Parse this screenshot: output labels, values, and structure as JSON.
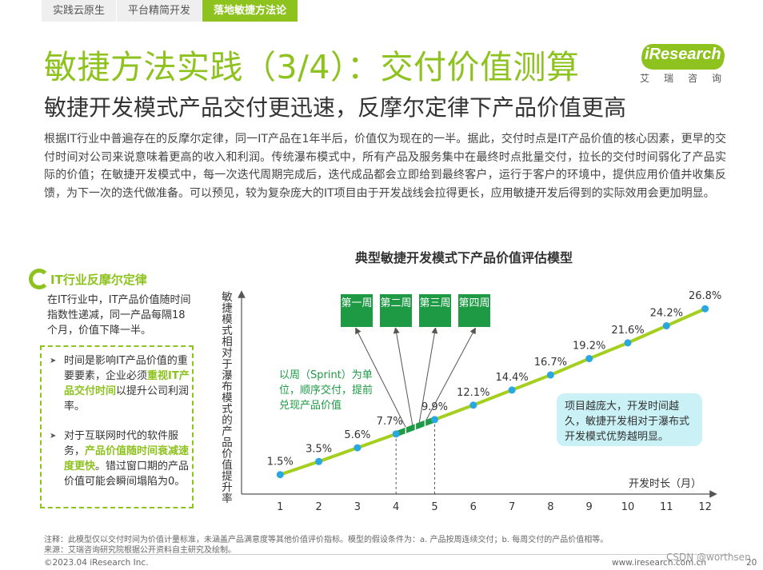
{
  "tabs": [
    {
      "label": "实践云原生",
      "active": false
    },
    {
      "label": "平台精简开发",
      "active": false
    },
    {
      "label": "落地敏捷方法论",
      "active": true
    }
  ],
  "title": "敏捷方法实践（3/4）：交付价值测算",
  "logo": {
    "text": "iResearch",
    "sub": "艾瑞咨询"
  },
  "subtitle": "敏捷开发模式产品交付更迅速，反摩尔定律下产品价值更高",
  "intro": "根据IT行业中普遍存在的反摩尔定律，同一IT产品在1年半后，价值仅为现在的一半。据此，交付时点是IT产品价值的核心因素，更早的交付时间对公司来说意味着更高的收入和利润。传统瀑布模式中，所有产品及服务集中在最终时点批量交付，拉长的交付时间弱化了产品实际的价值；在敏捷开发模式中，每一次迭代周期完成后，迭代成品都会立即给到最终客户，运行于客户的环境中，提供应用价值并收集反馈，为下一次的迭代做准备。可以预见，较为复杂庞大的IT项目由于开发战线会拉得更长，应用敏捷开发后得到的实际效用会更加明显。",
  "sidebar": {
    "title": "IT行业反摩尔定律",
    "desc": "在IT行业中，IT产品价值随时间指数性递减，同一产品每隔18个月，价值下降一半。",
    "note1": {
      "pre": "时间是影响IT产品价值的重要要素，企业必须",
      "hl": "重视IT产品交付时间",
      "post": "以提升公司利润率。"
    },
    "note2": {
      "pre": "对于互联网时代的软件服务，",
      "hl": "产品价值随时间衰减速度更快",
      "post": "。错过窗口期的产品价值可能会瞬间塌陷为0。"
    }
  },
  "chart_data": {
    "type": "line",
    "title": "典型敏捷开发模式下产品价值评估模型",
    "xlabel": "开发时长（月）",
    "ylabel": "敏捷模式相对于瀑布模式的产品价值提升率",
    "x": [
      1,
      2,
      3,
      4,
      5,
      6,
      7,
      8,
      9,
      10,
      11,
      12
    ],
    "y": [
      1.5,
      3.5,
      5.6,
      7.7,
      9.9,
      12.1,
      14.4,
      16.7,
      19.2,
      21.6,
      24.2,
      26.8
    ],
    "labels": [
      "1.5%",
      "3.5%",
      "5.6%",
      "7.7%",
      "9.9%",
      "12.1%",
      "14.4%",
      "16.7%",
      "19.2%",
      "21.6%",
      "24.2%",
      "26.8%"
    ],
    "xlim": [
      0,
      12
    ],
    "ylim": [
      0,
      30
    ],
    "line_color": "#a5cf1f",
    "marker_color": "#2aa7e0",
    "weeks": [
      "第一周",
      "第二周",
      "第三周",
      "第四周"
    ],
    "sprint_note": "以周（Sprint）为单位，顺序交付，提前兑现产品价值",
    "callout": "项目越庞大，开发时间越久，敏捷开发相对于瀑布式开发模式优势越明显。"
  },
  "footnote": "注释：此模型仅以交付时间为价值计量标准，未涵盖产品满意度等其他价值评价指标。模型的假设条件为：a. 产品按周连续交付；b. 每周交付的产品价值相等。",
  "source": "来源：艾瑞咨询研究院根据公开资料自主研究及绘制。",
  "copyright": "©2023.04 iResearch Inc.",
  "site": "www.iresearch.com.cn",
  "watermark": "CSDN @worthsen",
  "page": "20",
  "colors": {
    "brand": "#8dc21f",
    "week_box": "#1e9a44",
    "callout_bg": "#c9f1f6"
  }
}
